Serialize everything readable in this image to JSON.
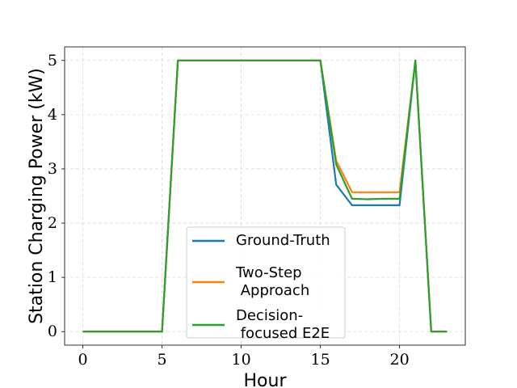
{
  "chart_data": {
    "type": "line",
    "title": "",
    "xlabel": "Hour",
    "ylabel": "Station Charging Power (kW)",
    "xlim": [
      -1.15,
      24.15
    ],
    "ylim": [
      -0.25,
      5.25
    ],
    "x_ticks": [
      0,
      5,
      10,
      15,
      20
    ],
    "y_ticks": [
      0,
      1,
      2,
      3,
      4,
      5
    ],
    "grid": true,
    "legend_position": "lower-center",
    "x": [
      0,
      1,
      2,
      3,
      4,
      5,
      6,
      7,
      8,
      9,
      10,
      11,
      12,
      13,
      14,
      15,
      16,
      17,
      18,
      19,
      20,
      21,
      22,
      23
    ],
    "series": [
      {
        "name": "Ground-Truth",
        "color": "#1f77b4",
        "values": [
          0,
          0,
          0,
          0,
          0,
          0,
          5,
          5,
          5,
          5,
          5,
          5,
          5,
          5,
          5,
          5,
          2.71,
          2.33,
          2.33,
          2.33,
          2.33,
          5,
          0,
          0
        ]
      },
      {
        "name": "Two-Step\n Approach",
        "color": "#ff7f0e",
        "values": [
          0,
          0,
          0,
          0,
          0,
          0,
          5,
          5,
          5,
          5,
          5,
          5,
          5,
          5,
          5,
          5,
          3.15,
          2.57,
          2.57,
          2.57,
          2.57,
          5,
          0,
          0
        ]
      },
      {
        "name": "Decision-\n focused E2E",
        "color": "#2ca02c",
        "values": [
          0,
          0,
          0,
          0,
          0,
          0,
          5,
          5,
          5,
          5,
          5,
          5,
          5,
          5,
          5,
          5,
          3.08,
          2.45,
          2.44,
          2.45,
          2.45,
          5,
          0,
          0
        ]
      }
    ]
  }
}
